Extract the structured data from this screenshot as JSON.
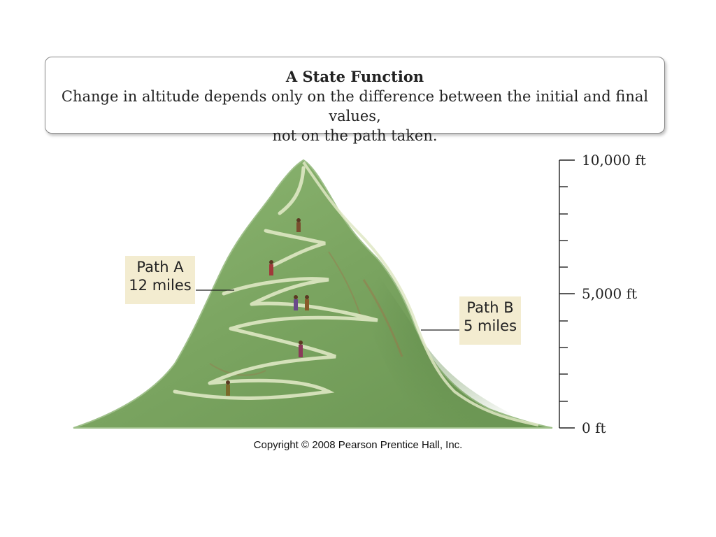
{
  "title": {
    "heading": "A State Function",
    "line1": "Change in altitude depends only on the difference between the initial and final values,",
    "line2": "not on the path taken."
  },
  "path_a": {
    "line1": "Path A",
    "line2": "12 miles"
  },
  "path_b": {
    "line1": "Path B",
    "line2": "5 miles"
  },
  "scale": {
    "top": "10,000 ft",
    "middle": "5,000 ft",
    "bottom": "0 ft"
  },
  "copyright": "Copyright © 2008 Pearson Prentice Hall, Inc.",
  "colors": {
    "mountain": "#7fa865",
    "mountain_dark": "#5e8a4c",
    "trail": "#dfe8c4",
    "label_bg": "#f3ecd0"
  }
}
